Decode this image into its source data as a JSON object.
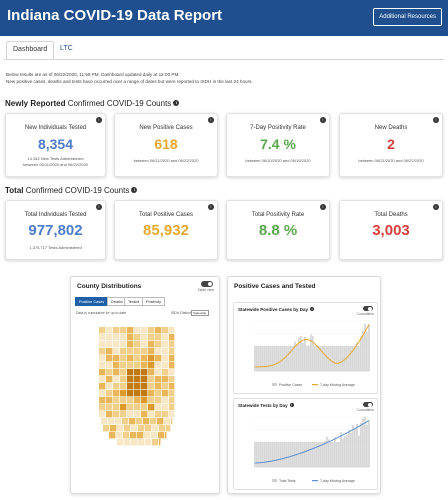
{
  "header": {
    "title": "Indiana COVID-19 Data Report",
    "resources_button": "Additional Resources"
  },
  "tabs": [
    {
      "label": "Dashboard"
    },
    {
      "label": "LTC"
    }
  ],
  "notice": {
    "line1": "Below results are as of 06/22/2020, 11:59 PM. Dashboard updated daily at 12:00 PM.",
    "line2": "New positive cases, deaths and tests have occurred over a range of dates but were reported to ISDH in the last 24 hours."
  },
  "newly": {
    "title_bold": "Newly Reported",
    "title_rest": " Confirmed COVID-19 Counts",
    "cards": [
      {
        "label": "New Individuals Tested",
        "value": "8,354",
        "sub1": "14,342 New Tests Administered",
        "sub2": "between 06/11/2020 and 06/22/2020",
        "color": "#4d7cc7"
      },
      {
        "label": "New Positive Cases",
        "value": "618",
        "sub1": "between 06/11/2020 and 06/22/2020",
        "color": "#e6a92e"
      },
      {
        "label": "7-Day Positivity Rate",
        "value": "7.4 %",
        "sub1": "between 06/10/2020 and 06/16/2020",
        "color": "#59a84b"
      },
      {
        "label": "New Deaths",
        "value": "2",
        "sub1": "between 06/21/2020 and 06/22/2020",
        "color": "#d6403a"
      }
    ]
  },
  "total": {
    "title_bold": "Total",
    "title_rest": " Confirmed COVID-19 Counts",
    "cards": [
      {
        "label": "Total Individuals Tested",
        "value": "977,802",
        "sub1": "1,375,717 Tests Administered",
        "color": "#4d7cc7"
      },
      {
        "label": "Total Positive Cases",
        "value": "85,932",
        "color": "#e6a92e"
      },
      {
        "label": "Total Positivity Rate",
        "value": "8.8 %",
        "color": "#59a84b"
      },
      {
        "label": "Total Deaths",
        "value": "3,003",
        "color": "#d6403a"
      }
    ]
  },
  "county": {
    "title": "County Distributions",
    "toggle_label": "Table view",
    "tabs": [
      "Positive Cases",
      "Deaths",
      "Tested",
      "Positivity"
    ],
    "note": "Data is cumulative for up to date",
    "filter_label": "ISDH District",
    "filter_value": "Statewide",
    "map_colors": [
      "#f7e7c4",
      "#f1d08c",
      "#e9b659",
      "#dc9a2c",
      "#bf7a16"
    ]
  },
  "positive": {
    "title": "Positive Cases and Tested",
    "chart1": {
      "title": "Statewide Positive Cases by Day",
      "toggle_label": "Cumulative",
      "bar_color": "#cfcfcf",
      "line_color": "#e6a92e",
      "legend": [
        "Positive Cases",
        "7-day Moving Average"
      ]
    },
    "chart2": {
      "title": "Statewide Tests by Day",
      "toggle_label": "Cumulative",
      "bar_color": "#cfcfcf",
      "line_color": "#5b8fd6",
      "legend": [
        "Total Tests",
        "7-day Moving Average"
      ]
    }
  }
}
